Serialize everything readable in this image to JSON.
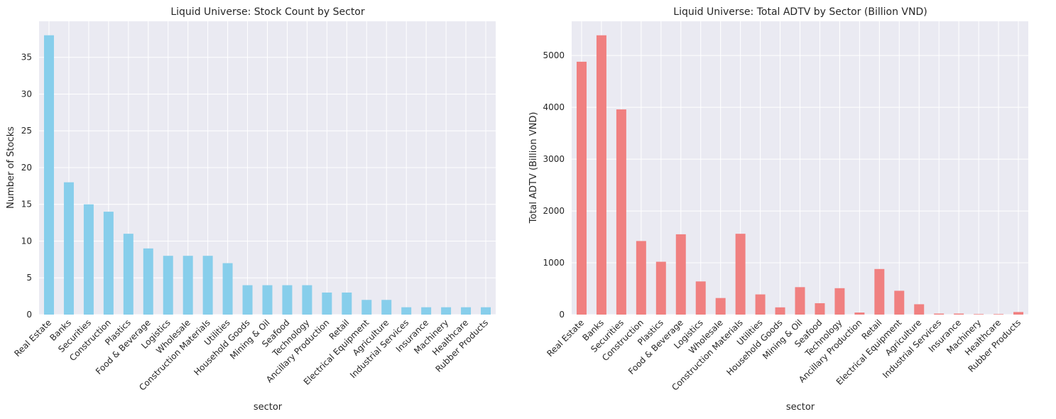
{
  "charts": [
    {
      "id": "count",
      "title": "Liquid Universe: Stock Count by Sector",
      "xlabel": "sector",
      "ylabel": "Number of Stocks",
      "color": "#87CEEB"
    },
    {
      "id": "adtv",
      "title": "Liquid Universe: Total ADTV by Sector (Billion VND)",
      "xlabel": "sector",
      "ylabel": "Total ADTV (Billion VND)",
      "color": "#F08080"
    }
  ],
  "chart_data": [
    {
      "type": "bar",
      "title": "Liquid Universe: Stock Count by Sector",
      "xlabel": "sector",
      "ylabel": "Number of Stocks",
      "categories": [
        "Real Estate",
        "Banks",
        "Securities",
        "Construction",
        "Plastics",
        "Food & Beverage",
        "Logistics",
        "Wholesale",
        "Construction Materials",
        "Utilities",
        "Household Goods",
        "Mining & Oil",
        "Seafood",
        "Technology",
        "Ancillary Production",
        "Retail",
        "Electrical Equipment",
        "Agriculture",
        "Industrial Services",
        "Insurance",
        "Machinery",
        "Healthcare",
        "Rubber Products"
      ],
      "values": [
        38,
        18,
        15,
        14,
        11,
        9,
        8,
        8,
        8,
        7,
        4,
        4,
        4,
        4,
        3,
        3,
        2,
        2,
        1,
        1,
        1,
        1,
        1
      ],
      "ylim": [
        0,
        39.9
      ],
      "yticks": [
        0,
        5,
        10,
        15,
        20,
        25,
        30,
        35
      ],
      "grid": true,
      "color": "#87CEEB"
    },
    {
      "type": "bar",
      "title": "Liquid Universe: Total ADTV by Sector (Billion VND)",
      "xlabel": "sector",
      "ylabel": "Total ADTV (Billion VND)",
      "categories": [
        "Real Estate",
        "Banks",
        "Securities",
        "Construction",
        "Plastics",
        "Food & Beverage",
        "Logistics",
        "Wholesale",
        "Construction Materials",
        "Utilities",
        "Household Goods",
        "Mining & Oil",
        "Seafood",
        "Technology",
        "Ancillary Production",
        "Retail",
        "Electrical Equipment",
        "Agriculture",
        "Industrial Services",
        "Insurance",
        "Machinery",
        "Healthcare",
        "Rubber Products"
      ],
      "values": [
        4880,
        5390,
        3960,
        1420,
        1020,
        1550,
        640,
        320,
        1560,
        390,
        140,
        530,
        220,
        510,
        40,
        880,
        460,
        200,
        20,
        20,
        10,
        10,
        50
      ],
      "ylim": [
        0,
        5660
      ],
      "yticks": [
        0,
        1000,
        2000,
        3000,
        4000,
        5000
      ],
      "grid": true,
      "color": "#F08080"
    }
  ]
}
